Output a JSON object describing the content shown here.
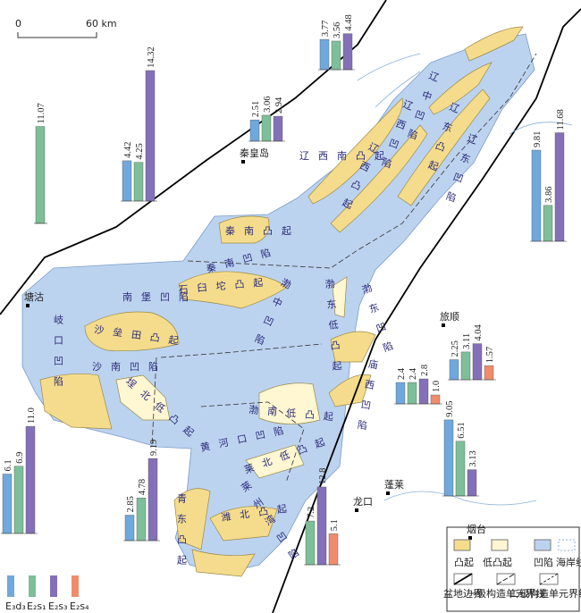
{
  "scale_bar": {
    "start": "0",
    "end": "60 km"
  },
  "series": [
    {
      "name": "E₃d₃",
      "color": "#6fa8dc"
    },
    {
      "name": "E₂s₁",
      "color": "#7dbf98"
    },
    {
      "name": "E₂s₃",
      "color": "#8470b8"
    },
    {
      "name": "E₂s₄",
      "color": "#f08c6c"
    }
  ],
  "bar_groups": [
    {
      "series": [
        1
      ],
      "values": [
        11.07
      ]
    },
    {
      "series": [
        0,
        1,
        2
      ],
      "values": [
        4.42,
        4.25,
        14.32
      ]
    },
    {
      "series": [
        0,
        1,
        2
      ],
      "values": [
        2.51,
        3.06,
        2.94
      ]
    },
    {
      "series": [
        0,
        1,
        2
      ],
      "values": [
        3.77,
        3.56,
        4.48
      ]
    },
    {
      "series": [
        0,
        1,
        2
      ],
      "values": [
        9.81,
        3.86,
        11.68
      ]
    },
    {
      "series": [
        0,
        1,
        2,
        3
      ],
      "values": [
        2.25,
        3.11,
        4.04,
        1.57
      ]
    },
    {
      "series": [
        0,
        1,
        2,
        3
      ],
      "values": [
        2.4,
        2.4,
        2.8,
        1.0
      ],
      "value_labels": [
        "2.4",
        "2.4",
        "2.8",
        "1.0"
      ]
    },
    {
      "series": [
        0,
        1,
        2
      ],
      "values": [
        9.05,
        6.51,
        3.13
      ]
    },
    {
      "series": [
        0,
        1,
        2
      ],
      "values": [
        6.1,
        6.9,
        11.0
      ],
      "value_labels": [
        "6.1",
        "6.9",
        "11.0"
      ]
    },
    {
      "series": [
        0,
        1,
        2
      ],
      "values": [
        2.85,
        4.78,
        9.19
      ]
    },
    {
      "series": [
        1,
        2,
        3
      ],
      "values": [
        7.2,
        12.8,
        5.1
      ]
    }
  ],
  "place_names": [
    "秦皇岛",
    "塘沽",
    "旅顺",
    "蓬莱",
    "龙口",
    "烟台"
  ],
  "unit_labels": [
    "辽西南凸起",
    "秦南凸起",
    "秦南凹陷",
    "石臼坨凸起",
    "南堡凹陷",
    "岐口凹陷",
    "沙垒田凸起",
    "沙南凹陷",
    "埕北低凸起",
    "渤中凹陷",
    "渤南低凸起",
    "黄河口凹陷",
    "莱北低凸起",
    "莱州湾凹陷",
    "青东凸起",
    "潍北凸起",
    "渤东低凸起",
    "渤东凹陷",
    "庙西凹陷",
    "辽西凹陷",
    "辽西凸起",
    "辽中凹陷",
    "辽东凸起",
    "辽东凹陷"
  ],
  "map_legend": [
    "凸起",
    "低凸起",
    "凹陷",
    "海岸线",
    "盆地边界",
    "一级构造单元界线",
    "二级构造单元界线"
  ]
}
